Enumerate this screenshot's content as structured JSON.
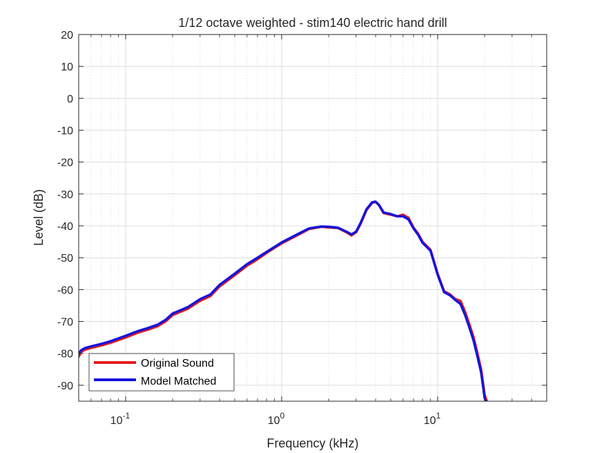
{
  "chart_data": {
    "type": "line",
    "title": "1/12 octave weighted - stim140 electric hand drill",
    "xlabel": "Frequency (kHz)",
    "ylabel": "Level (dB)",
    "x_scale": "log",
    "xlim": [
      0.05,
      50
    ],
    "ylim": [
      -95,
      20
    ],
    "x_ticks": [
      {
        "value": 0.1,
        "base": "10",
        "exp": "-1"
      },
      {
        "value": 1,
        "base": "10",
        "exp": "0"
      },
      {
        "value": 10,
        "base": "10",
        "exp": "1"
      }
    ],
    "y_ticks": [
      20,
      10,
      0,
      -10,
      -20,
      -30,
      -40,
      -50,
      -60,
      -70,
      -80,
      -90
    ],
    "grid": true,
    "minor_grid": true,
    "legend_position": "bottom-left",
    "series": [
      {
        "name": "Original Sound",
        "color": "#e41a1c",
        "x": [
          0.05,
          0.052,
          0.055,
          0.06,
          0.07,
          0.08,
          0.09,
          0.1,
          0.12,
          0.14,
          0.16,
          0.18,
          0.2,
          0.25,
          0.3,
          0.35,
          0.4,
          0.5,
          0.6,
          0.7,
          0.8,
          1.0,
          1.2,
          1.5,
          1.8,
          2.0,
          2.3,
          2.6,
          2.8,
          3.0,
          3.2,
          3.5,
          3.8,
          4.0,
          4.2,
          4.5,
          5.0,
          5.5,
          6.0,
          6.5,
          7.0,
          7.5,
          8.0,
          9.0,
          10.0,
          11.0,
          12.0,
          13.0,
          14.0,
          15.0,
          16.0,
          17.0,
          18.0,
          19.0,
          20.0,
          21.0
        ],
        "y": [
          -81,
          -79.5,
          -78.8,
          -78.3,
          -77.5,
          -76.7,
          -75.8,
          -75,
          -73.5,
          -72.5,
          -71.5,
          -70,
          -68,
          -66,
          -63.5,
          -62,
          -59,
          -55.5,
          -52.5,
          -50.5,
          -48.5,
          -45.5,
          -43.5,
          -41,
          -40.3,
          -40.5,
          -40.7,
          -42,
          -43,
          -42,
          -39.5,
          -35,
          -32.8,
          -32.5,
          -33.5,
          -36,
          -36.5,
          -37,
          -36.5,
          -37.5,
          -40.5,
          -42.5,
          -45,
          -47.5,
          -55,
          -60.5,
          -61.5,
          -63,
          -63.5,
          -67,
          -71,
          -75,
          -80,
          -85,
          -93,
          -96
        ]
      },
      {
        "name": "Model Matched",
        "color": "#1414dc",
        "x": [
          0.05,
          0.052,
          0.055,
          0.06,
          0.07,
          0.08,
          0.09,
          0.1,
          0.12,
          0.14,
          0.16,
          0.18,
          0.2,
          0.25,
          0.3,
          0.35,
          0.4,
          0.5,
          0.6,
          0.7,
          0.8,
          1.0,
          1.2,
          1.5,
          1.8,
          2.0,
          2.3,
          2.6,
          2.8,
          3.0,
          3.2,
          3.5,
          3.8,
          4.0,
          4.2,
          4.5,
          5.0,
          5.5,
          6.0,
          6.5,
          7.0,
          7.5,
          8.0,
          9.0,
          10.0,
          11.0,
          12.0,
          13.0,
          14.0,
          15.0,
          16.0,
          17.0,
          18.0,
          19.0,
          20.0,
          21.0
        ],
        "y": [
          -80,
          -79,
          -78.3,
          -77.8,
          -77,
          -76.2,
          -75.3,
          -74.5,
          -73,
          -72,
          -71,
          -69.5,
          -67.5,
          -65.5,
          -63,
          -61.5,
          -58.5,
          -55,
          -52,
          -50,
          -48.2,
          -45.2,
          -43.2,
          -40.8,
          -40.2,
          -40.3,
          -40.6,
          -41.8,
          -42.7,
          -41.8,
          -39.2,
          -34.8,
          -32.6,
          -32.4,
          -33.4,
          -35.8,
          -36.3,
          -37,
          -37,
          -38,
          -40.8,
          -42.8,
          -45.3,
          -47.8,
          -55.3,
          -60.8,
          -61.8,
          -63.3,
          -64.5,
          -68,
          -72,
          -76,
          -81,
          -86,
          -94,
          -97
        ]
      }
    ]
  }
}
